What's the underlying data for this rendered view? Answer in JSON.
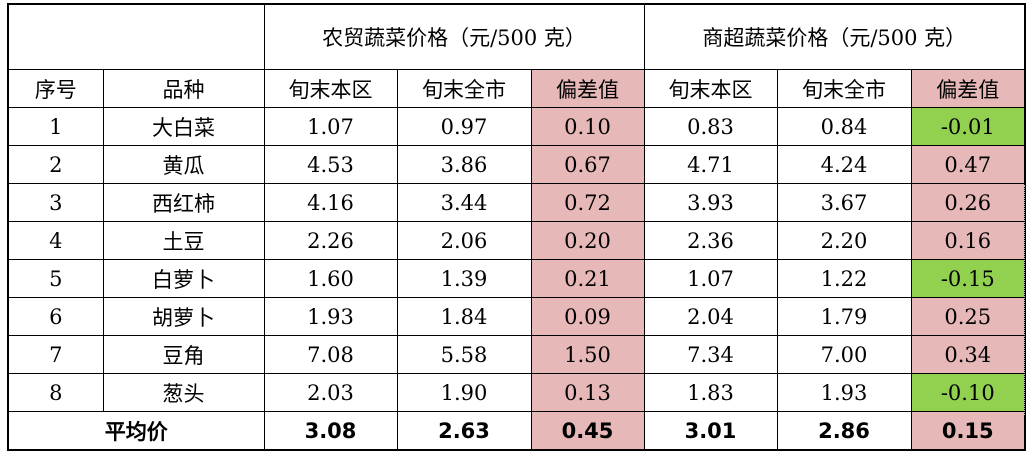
{
  "colors": {
    "positive": "#e6b8b7",
    "negative": "#92d050"
  },
  "header": {
    "group_farm": "农贸蔬菜价格（元/500 克）",
    "group_super": "商超蔬菜价格（元/500 克）",
    "col_index": "序号",
    "col_variety": "品种",
    "sub_local": "旬末本区",
    "sub_city": "旬末全市",
    "sub_dev": "偏差值"
  },
  "rows": [
    {
      "idx": "1",
      "name": "大白菜",
      "f_local": "1.07",
      "f_city": "0.97",
      "f_dev": "0.10",
      "f_dev_sign": "pos",
      "s_local": "0.83",
      "s_city": "0.84",
      "s_dev": "-0.01",
      "s_dev_sign": "neg"
    },
    {
      "idx": "2",
      "name": "黄瓜",
      "f_local": "4.53",
      "f_city": "3.86",
      "f_dev": "0.67",
      "f_dev_sign": "pos",
      "s_local": "4.71",
      "s_city": "4.24",
      "s_dev": "0.47",
      "s_dev_sign": "pos"
    },
    {
      "idx": "3",
      "name": "西红柿",
      "f_local": "4.16",
      "f_city": "3.44",
      "f_dev": "0.72",
      "f_dev_sign": "pos",
      "s_local": "3.93",
      "s_city": "3.67",
      "s_dev": "0.26",
      "s_dev_sign": "pos"
    },
    {
      "idx": "4",
      "name": "土豆",
      "f_local": "2.26",
      "f_city": "2.06",
      "f_dev": "0.20",
      "f_dev_sign": "pos",
      "s_local": "2.36",
      "s_city": "2.20",
      "s_dev": "0.16",
      "s_dev_sign": "pos"
    },
    {
      "idx": "5",
      "name": "白萝卜",
      "f_local": "1.60",
      "f_city": "1.39",
      "f_dev": "0.21",
      "f_dev_sign": "pos",
      "s_local": "1.07",
      "s_city": "1.22",
      "s_dev": "-0.15",
      "s_dev_sign": "neg"
    },
    {
      "idx": "6",
      "name": "胡萝卜",
      "f_local": "1.93",
      "f_city": "1.84",
      "f_dev": "0.09",
      "f_dev_sign": "pos",
      "s_local": "2.04",
      "s_city": "1.79",
      "s_dev": "0.25",
      "s_dev_sign": "pos"
    },
    {
      "idx": "7",
      "name": "豆角",
      "f_local": "7.08",
      "f_city": "5.58",
      "f_dev": "1.50",
      "f_dev_sign": "pos",
      "s_local": "7.34",
      "s_city": "7.00",
      "s_dev": "0.34",
      "s_dev_sign": "pos"
    },
    {
      "idx": "8",
      "name": "葱头",
      "f_local": "2.03",
      "f_city": "1.90",
      "f_dev": "0.13",
      "f_dev_sign": "pos",
      "s_local": "1.83",
      "s_city": "1.93",
      "s_dev": "-0.10",
      "s_dev_sign": "neg"
    }
  ],
  "average": {
    "label": "平均价",
    "f_local": "3.08",
    "f_city": "2.63",
    "f_dev": "0.45",
    "s_local": "3.01",
    "s_city": "2.86",
    "s_dev": "0.15"
  }
}
